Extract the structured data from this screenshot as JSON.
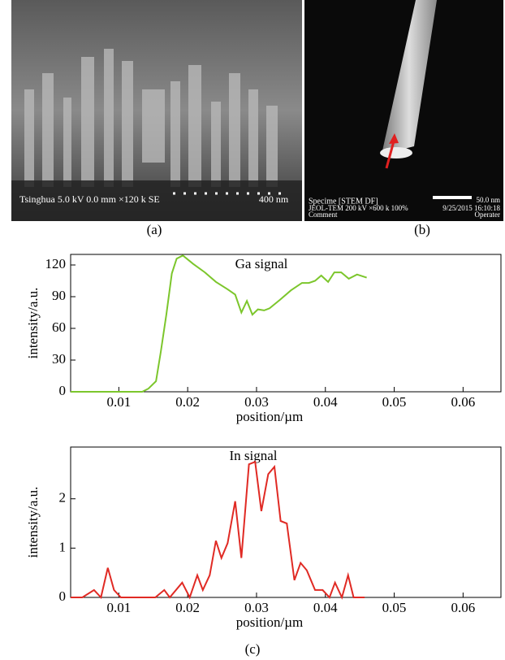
{
  "images": [
    {
      "label": "(a)",
      "texts": [
        "Tsinghua 5.0 kV 0.0 mm ×120 k SE",
        "400 nm"
      ]
    },
    {
      "label": "(b)",
      "texts": [
        "Specime [STEM DF]",
        "JEOL-TEM 200 kV ×600 k 100%",
        "Comment",
        "50.0 nm",
        "9/25/2015 16:10:18",
        "Operater"
      ]
    }
  ],
  "chart_data": [
    {
      "type": "line",
      "annotation": "Ga signal",
      "xlabel": "position/µm",
      "ylabel": "intensity/a.u.",
      "xlim": [
        0.003,
        0.0655
      ],
      "ylim": [
        0,
        130
      ],
      "xticks": [
        0.01,
        0.02,
        0.03,
        0.04,
        0.05,
        0.06
      ],
      "yticks": [
        0,
        30,
        60,
        90,
        120
      ],
      "x": [
        0.003,
        0.0134,
        0.0143,
        0.0154,
        0.0161,
        0.0169,
        0.0177,
        0.0184,
        0.0193,
        0.0208,
        0.0225,
        0.0241,
        0.0258,
        0.0269,
        0.0278,
        0.0286,
        0.0294,
        0.0302,
        0.0311,
        0.0319,
        0.0334,
        0.035,
        0.0366,
        0.0376,
        0.0385,
        0.0394,
        0.0404,
        0.0413,
        0.0423,
        0.0434,
        0.0446,
        0.046
      ],
      "series": [
        {
          "color": "#7cc62c",
          "values": [
            0,
            0,
            3,
            10,
            38,
            73,
            112,
            126,
            129,
            121,
            113,
            104,
            97,
            92,
            75,
            86,
            73,
            78,
            77,
            79,
            87,
            96,
            103,
            103,
            105,
            110,
            104,
            113,
            113,
            107,
            111,
            108
          ]
        }
      ]
    },
    {
      "type": "line",
      "annotation": "In signal",
      "xlabel": "position/µm",
      "ylabel": "intensity/a.u.",
      "xlim": [
        0.003,
        0.0655
      ],
      "ylim": [
        0,
        3.05
      ],
      "xticks": [
        0.01,
        0.02,
        0.03,
        0.04,
        0.05,
        0.06
      ],
      "yticks": [
        0,
        1,
        2
      ],
      "x": [
        0.003,
        0.0047,
        0.0064,
        0.0074,
        0.0084,
        0.0093,
        0.0103,
        0.0113,
        0.0133,
        0.0153,
        0.0166,
        0.0174,
        0.0192,
        0.0203,
        0.0214,
        0.0222,
        0.0232,
        0.0241,
        0.0249,
        0.0258,
        0.0269,
        0.0278,
        0.0289,
        0.0298,
        0.0307,
        0.0317,
        0.0326,
        0.0335,
        0.0344,
        0.0355,
        0.0364,
        0.0373,
        0.0385,
        0.0396,
        0.0406,
        0.0414,
        0.0424,
        0.0433,
        0.0441,
        0.0457
      ],
      "series": [
        {
          "color": "#e02a24",
          "values": [
            0,
            0,
            0.15,
            0,
            0.6,
            0.15,
            0,
            0,
            0,
            0,
            0.15,
            0,
            0.3,
            0,
            0.45,
            0.15,
            0.45,
            1.15,
            0.8,
            1.1,
            1.95,
            0.8,
            2.7,
            2.75,
            1.75,
            2.5,
            2.65,
            1.55,
            1.5,
            0.35,
            0.7,
            0.55,
            0.15,
            0.15,
            0,
            0.3,
            0,
            0.45,
            0,
            0
          ]
        }
      ]
    }
  ],
  "caption": "(c)"
}
